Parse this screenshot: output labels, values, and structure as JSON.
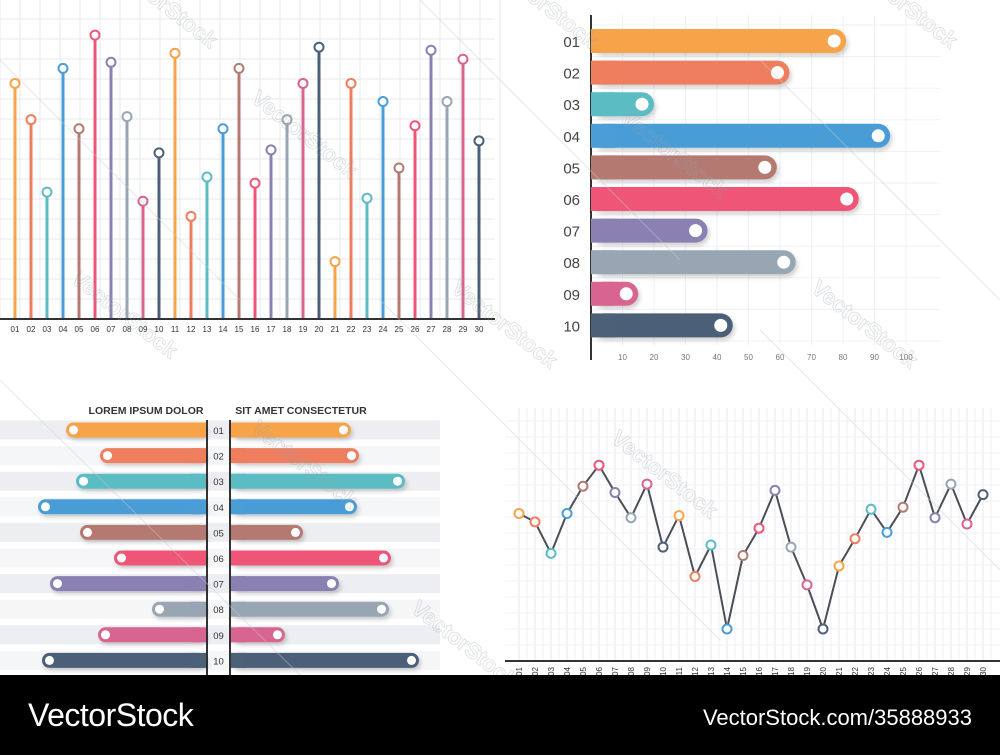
{
  "footer": {
    "brand": "VectorStock",
    "credit": "VectorStock.com/35888933"
  },
  "watermark_text": "VectorStock",
  "colors": {
    "orange": "#f6a34a",
    "salmon": "#ee7e5e",
    "teal": "#5cbcc4",
    "blue": "#4a9dd6",
    "brown": "#b47a72",
    "pink": "#ee5577",
    "purple": "#8a80b2",
    "gray": "#98a6b4",
    "rose": "#d76590",
    "navy": "#4b6178",
    "line": "#4a4f57",
    "grid": "#e6e8ec",
    "axis": "#333333"
  },
  "chart_data": [
    {
      "type": "bar",
      "orientation": "vertical",
      "style": "lollipop",
      "categories": [
        "01",
        "02",
        "03",
        "04",
        "05",
        "06",
        "07",
        "08",
        "09",
        "10",
        "11",
        "12",
        "13",
        "14",
        "15",
        "16",
        "17",
        "18",
        "19",
        "20",
        "21",
        "22",
        "23",
        "24",
        "25",
        "26",
        "27",
        "28",
        "29",
        "30"
      ],
      "values": [
        78,
        66,
        42,
        83,
        63,
        94,
        85,
        67,
        39,
        55,
        88,
        34,
        47,
        63,
        83,
        45,
        56,
        66,
        78,
        90,
        19,
        78,
        40,
        72,
        50,
        64,
        89,
        72,
        86,
        59
      ],
      "colors": [
        "orange",
        "salmon",
        "teal",
        "blue",
        "brown",
        "pink",
        "purple",
        "gray",
        "rose",
        "navy",
        "orange",
        "salmon",
        "teal",
        "blue",
        "brown",
        "pink",
        "purple",
        "gray",
        "rose",
        "navy",
        "orange",
        "salmon",
        "teal",
        "blue",
        "brown",
        "pink",
        "purple",
        "gray",
        "rose",
        "navy"
      ],
      "ylim": [
        0,
        100
      ],
      "grid": true
    },
    {
      "type": "bar",
      "orientation": "horizontal",
      "categories": [
        "01",
        "02",
        "03",
        "04",
        "05",
        "06",
        "07",
        "08",
        "09",
        "10"
      ],
      "values": [
        81,
        63,
        20,
        95,
        59,
        85,
        37,
        65,
        15,
        45
      ],
      "colors": [
        "orange",
        "salmon",
        "teal",
        "blue",
        "brown",
        "pink",
        "purple",
        "gray",
        "rose",
        "navy"
      ],
      "xticks": [
        "10",
        "20",
        "30",
        "40",
        "50",
        "60",
        "70",
        "80",
        "90",
        "100"
      ],
      "xlim": [
        0,
        100
      ],
      "grid": true
    },
    {
      "type": "bar",
      "orientation": "butterfly",
      "left_label": "LOREM IPSUM DOLOR",
      "right_label": "SIT AMET CONSECTETUR",
      "categories": [
        "01",
        "02",
        "03",
        "04",
        "05",
        "06",
        "07",
        "08",
        "09",
        "10"
      ],
      "left_values": [
        70,
        53,
        65,
        84,
        63,
        46,
        78,
        27,
        54,
        82
      ],
      "right_values": [
        60,
        64,
        87,
        63,
        36,
        80,
        54,
        79,
        27,
        94
      ],
      "colors": [
        "orange",
        "salmon",
        "teal",
        "blue",
        "brown",
        "pink",
        "purple",
        "gray",
        "rose",
        "navy"
      ],
      "xlim": [
        0,
        100
      ]
    },
    {
      "type": "line",
      "x": [
        "01",
        "02",
        "03",
        "04",
        "05",
        "06",
        "07",
        "08",
        "09",
        "10",
        "11",
        "12",
        "13",
        "14",
        "15",
        "16",
        "17",
        "18",
        "19",
        "20",
        "21",
        "22",
        "23",
        "24",
        "25",
        "26",
        "27",
        "28",
        "29",
        "30"
      ],
      "values": [
        65,
        61,
        46,
        65,
        78,
        88,
        75,
        63,
        79,
        49,
        64,
        35,
        50,
        10,
        45,
        58,
        76,
        49,
        31,
        10,
        40,
        53,
        67,
        56,
        68,
        88,
        63,
        79,
        60,
        74
      ],
      "colors": [
        "orange",
        "salmon",
        "teal",
        "blue",
        "brown",
        "pink",
        "purple",
        "gray",
        "rose",
        "navy",
        "orange",
        "salmon",
        "teal",
        "blue",
        "brown",
        "pink",
        "purple",
        "gray",
        "rose",
        "navy",
        "orange",
        "salmon",
        "teal",
        "blue",
        "brown",
        "pink",
        "purple",
        "gray",
        "rose",
        "navy"
      ],
      "ylim": [
        0,
        100
      ],
      "grid": true
    }
  ]
}
